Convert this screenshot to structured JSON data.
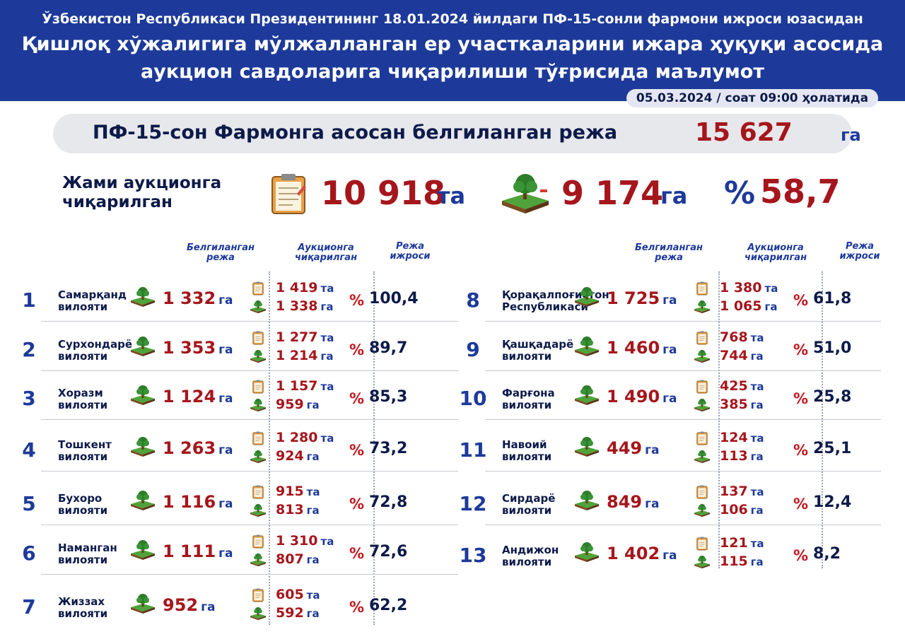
{
  "header": {
    "line1": "Ўзбекистон Республикаси Президентининг 18.01.2024 йилдаги ПФ-15-сонли фармони ижроси юзасидан",
    "line2": "Қишлоқ хўжалигига мўлжалланган ер участкаларини ижара ҳуқуқи асосида",
    "line3": "аукцион савдоларига чиқарилиши тўғрисида маълумот",
    "date": "05.03.2024 / соат 09:00 ҳолатида"
  },
  "plan": {
    "label": "ПФ-15-сон Фармонга асосан белгиланган режа",
    "value": "15 627",
    "unit": "га"
  },
  "totals": {
    "label_line1": "Жами аукционга",
    "label_line2": "чиқарилган",
    "count": "10 918",
    "count_unit": "та",
    "area": "9 174",
    "area_unit": "га",
    "percent_sign": "%",
    "percent": "58,7"
  },
  "columns": {
    "plan": [
      "Белгиланган",
      "режа"
    ],
    "auction": [
      "Аукционга",
      "чиқарилган"
    ],
    "exec": [
      "Режа",
      "ижроси"
    ]
  },
  "units": {
    "ta": "та",
    "ga": "га",
    "pct": "%"
  },
  "regions_left": [
    {
      "num": "1",
      "name1": "Самарқанд",
      "name2": "вилояти",
      "plan": "1 332",
      "count": "1 419",
      "area": "1 338",
      "pct": "100,4"
    },
    {
      "num": "2",
      "name1": "Сурхондарё",
      "name2": "вилояти",
      "plan": "1 353",
      "count": "1 277",
      "area": "1 214",
      "pct": "89,7"
    },
    {
      "num": "3",
      "name1": "Хоразм",
      "name2": "вилояти",
      "plan": "1 124",
      "count": "1 157",
      "area": "959",
      "pct": "85,3"
    },
    {
      "num": "4",
      "name1": "Тошкент",
      "name2": "вилояти",
      "plan": "1 263",
      "count": "1 280",
      "area": "924",
      "pct": "73,2"
    },
    {
      "num": "5",
      "name1": "Бухоро",
      "name2": "вилояти",
      "plan": "1 116",
      "count": "915",
      "area": "813",
      "pct": "72,8"
    },
    {
      "num": "6",
      "name1": "Наманган",
      "name2": "вилояти",
      "plan": "1 111",
      "count": "1 310",
      "area": "807",
      "pct": "72,6"
    },
    {
      "num": "7",
      "name1": "Жиззах",
      "name2": "вилояти",
      "plan": "952",
      "count": "605",
      "area": "592",
      "pct": "62,2"
    }
  ],
  "regions_right": [
    {
      "num": "8",
      "name1": "Қорақалпоғистон",
      "name2": "Республикаси",
      "plan": "1 725",
      "count": "1 380",
      "area": "1 065",
      "pct": "61,8"
    },
    {
      "num": "9",
      "name1": "Қашқадарё",
      "name2": "вилояти",
      "plan": "1 460",
      "count": "768",
      "area": "744",
      "pct": "51,0"
    },
    {
      "num": "10",
      "name1": "Фарғона",
      "name2": "вилояти",
      "plan": "1 490",
      "count": "425",
      "area": "385",
      "pct": "25,8"
    },
    {
      "num": "11",
      "name1": "Навоий",
      "name2": "вилояти",
      "plan": "449",
      "count": "124",
      "area": "113",
      "pct": "25,1"
    },
    {
      "num": "12",
      "name1": "Сирдарё",
      "name2": "вилояти",
      "plan": "849",
      "count": "137",
      "area": "106",
      "pct": "12,4"
    },
    {
      "num": "13",
      "name1": "Андижон",
      "name2": "вилояти",
      "plan": "1 402",
      "count": "121",
      "area": "115",
      "pct": "8,2"
    }
  ],
  "colors": {
    "navy": "#1d3a9a",
    "red": "#a5161c",
    "text": "#0d1a4a"
  },
  "icons": {
    "auction": "clipboard-icon",
    "land": "land-tree-icon"
  }
}
